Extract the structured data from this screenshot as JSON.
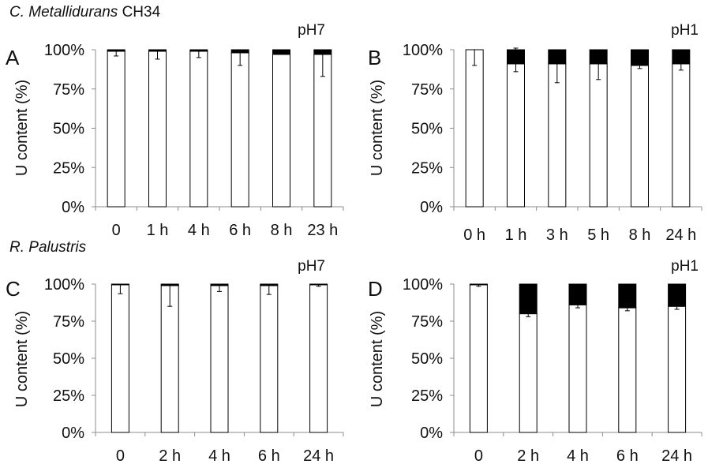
{
  "figure": {
    "row_titles": [
      {
        "species": "C. Metallidurans",
        "strain": "CH34"
      },
      {
        "species": "R. Palustris",
        "strain": ""
      }
    ]
  },
  "chart_data": [
    {
      "type": "bar",
      "stacked": true,
      "panel": "A",
      "condition": "pH7",
      "ylabel": "U content (%)",
      "ylim": [
        0,
        100
      ],
      "yticks": [
        "0%",
        "25%",
        "50%",
        "75%",
        "100%"
      ],
      "categories": [
        "0",
        "1 h",
        "4 h",
        "6 h",
        "8 h",
        "23 h"
      ],
      "series": [
        {
          "values": [
            99,
            99,
            99,
            98,
            97,
            97
          ],
          "color": "#ffffff",
          "error_low": [
            3,
            5,
            4,
            8,
            0,
            14
          ]
        },
        {
          "values": [
            1,
            1,
            1,
            2,
            3,
            3
          ],
          "color": "#000000"
        }
      ]
    },
    {
      "type": "bar",
      "stacked": true,
      "panel": "B",
      "condition": "pH1",
      "ylabel": "U content (%)",
      "ylim": [
        0,
        100
      ],
      "yticks": [
        "0%",
        "25%",
        "50%",
        "75%",
        "100%"
      ],
      "categories": [
        "0 h",
        "1 h",
        "3 h",
        "5 h",
        "8 h",
        "24 h"
      ],
      "series": [
        {
          "values": [
            100,
            91,
            91,
            91,
            90,
            91
          ],
          "color": "#ffffff",
          "error_low": [
            10,
            5,
            12,
            10,
            2,
            4
          ]
        },
        {
          "values": [
            0,
            9,
            9,
            9,
            10,
            9
          ],
          "color": "#000000",
          "error_high": [
            0,
            1,
            0,
            0,
            0,
            0
          ]
        }
      ]
    },
    {
      "type": "bar",
      "stacked": true,
      "panel": "C",
      "condition": "pH7",
      "ylabel": "U content (%)",
      "ylim": [
        0,
        100
      ],
      "yticks": [
        "0%",
        "25%",
        "50%",
        "75%",
        "100%"
      ],
      "categories": [
        "0",
        "2 h",
        "4 h",
        "6 h",
        "24 h"
      ],
      "series": [
        {
          "values": [
            99.5,
            99,
            99,
            99,
            99.5
          ],
          "color": "#ffffff",
          "error_low": [
            6,
            14,
            4,
            6,
            1
          ]
        },
        {
          "values": [
            0.5,
            1,
            1,
            1,
            0.5
          ],
          "color": "#000000"
        }
      ]
    },
    {
      "type": "bar",
      "stacked": true,
      "panel": "D",
      "condition": "pH1",
      "ylabel": "U content (%)",
      "ylim": [
        0,
        100
      ],
      "yticks": [
        "0%",
        "25%",
        "50%",
        "75%",
        "100%"
      ],
      "categories": [
        "0",
        "2 h",
        "4 h",
        "6 h",
        "24 h"
      ],
      "series": [
        {
          "values": [
            99.5,
            80,
            86,
            84,
            85
          ],
          "color": "#ffffff",
          "error_low": [
            1,
            2,
            2,
            2,
            2
          ]
        },
        {
          "values": [
            0.5,
            20,
            14,
            16,
            15
          ],
          "color": "#000000"
        }
      ]
    }
  ]
}
